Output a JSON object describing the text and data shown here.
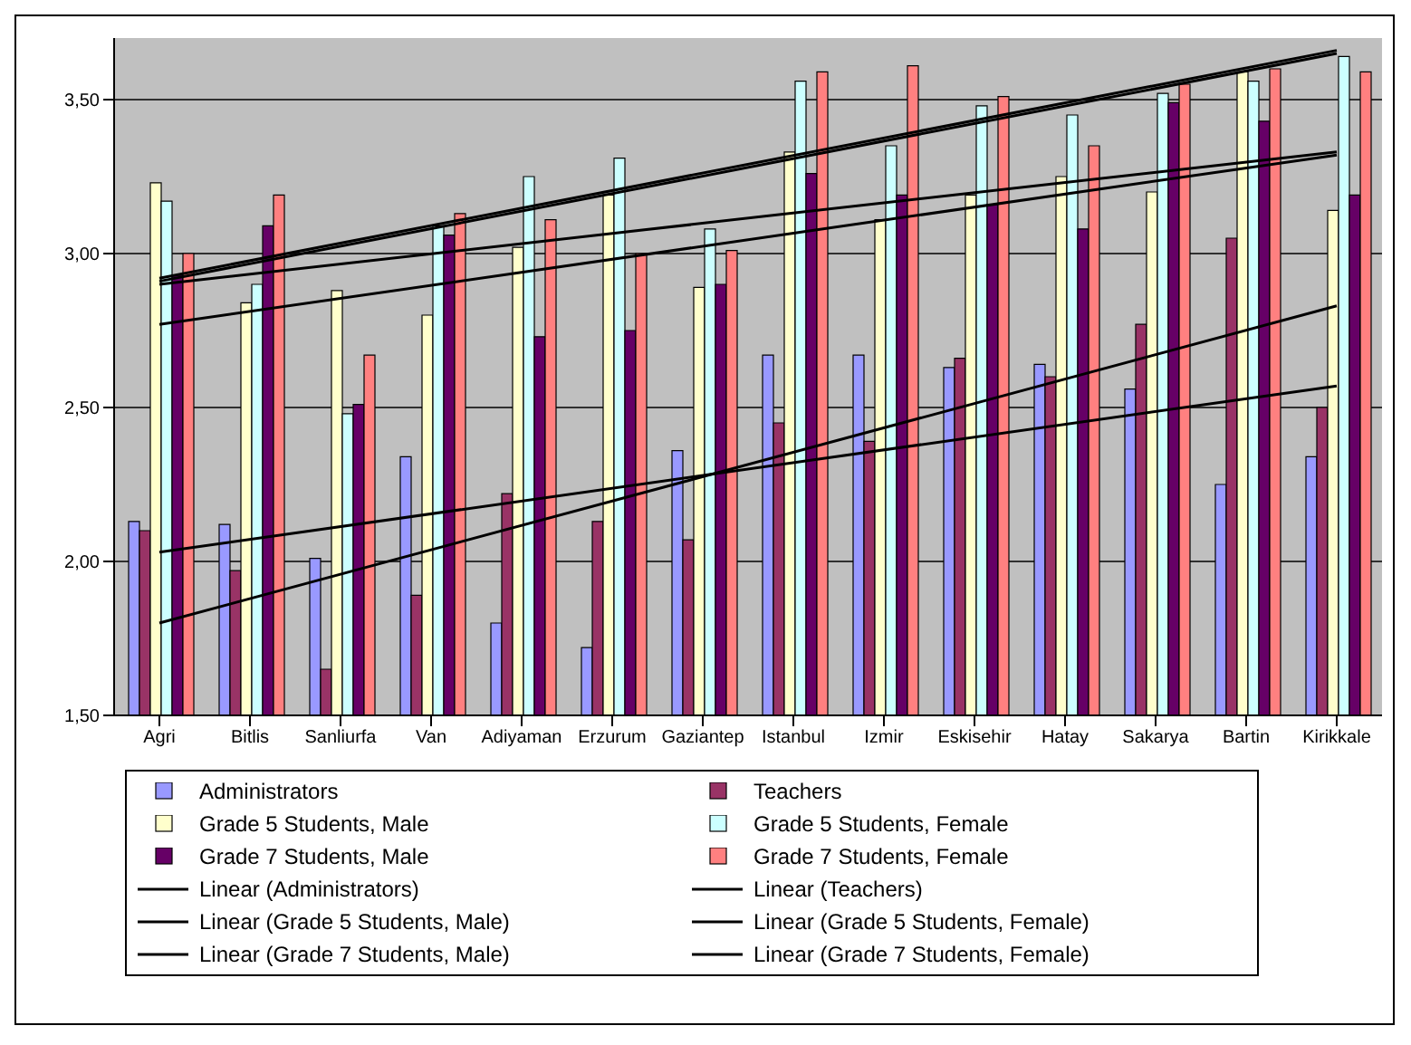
{
  "chart_data": {
    "type": "bar",
    "categories": [
      "Agri",
      "Bitlis",
      "Sanliurfa",
      "Van",
      "Adiyaman",
      "Erzurum",
      "Gaziantep",
      "Istanbul",
      "Izmir",
      "Eskisehir",
      "Hatay",
      "Sakarya",
      "Bartin",
      "Kirikkale"
    ],
    "series": [
      {
        "name": "Administrators",
        "color": "#9999ff",
        "values": [
          2.13,
          2.12,
          2.01,
          2.34,
          1.8,
          1.72,
          2.36,
          2.67,
          2.67,
          2.63,
          2.64,
          2.56,
          2.25,
          2.34
        ]
      },
      {
        "name": "Teachers",
        "color": "#993366",
        "values": [
          2.1,
          1.97,
          1.65,
          1.89,
          2.22,
          2.13,
          2.07,
          2.45,
          2.39,
          2.66,
          2.6,
          2.77,
          3.05,
          2.5
        ]
      },
      {
        "name": "Grade 5 Students, Male",
        "color": "#ffffcc",
        "values": [
          3.23,
          2.84,
          2.88,
          2.8,
          3.02,
          3.19,
          2.89,
          3.33,
          3.11,
          3.19,
          3.25,
          3.2,
          3.59,
          3.14
        ]
      },
      {
        "name": "Grade 5 Students, Female",
        "color": "#ccffff",
        "values": [
          3.17,
          2.9,
          2.48,
          3.09,
          3.25,
          3.31,
          3.08,
          3.56,
          3.35,
          3.48,
          3.45,
          3.52,
          3.56,
          3.64
        ]
      },
      {
        "name": "Grade 7 Students, Male",
        "color": "#660066",
        "values": [
          2.93,
          3.09,
          2.51,
          3.06,
          2.73,
          2.75,
          2.9,
          3.26,
          3.19,
          3.16,
          3.08,
          3.49,
          3.43,
          3.19
        ]
      },
      {
        "name": "Grade 7 Students, Female",
        "color": "#ff8080",
        "values": [
          3.0,
          3.19,
          2.67,
          3.13,
          3.11,
          3.0,
          3.01,
          3.59,
          3.61,
          3.51,
          3.35,
          3.55,
          3.6,
          3.59
        ]
      },
      {
        "name": "Linear (Administrators)",
        "type": "line",
        "color": "#000000",
        "x": [
          "Agri",
          "Kirikkale"
        ],
        "values": [
          2.03,
          2.57
        ]
      },
      {
        "name": "Linear (Teachers)",
        "type": "line",
        "color": "#000000",
        "x": [
          "Agri",
          "Kirikkale"
        ],
        "values": [
          1.8,
          2.83
        ]
      },
      {
        "name": "Linear (Grade 5 Students, Male)",
        "type": "line",
        "color": "#000000",
        "x": [
          "Agri",
          "Kirikkale"
        ],
        "values": [
          2.9,
          3.33
        ]
      },
      {
        "name": "Linear (Grade 5 Students, Female)",
        "type": "line",
        "color": "#000000",
        "x": [
          "Agri",
          "Kirikkale"
        ],
        "values": [
          2.92,
          3.66
        ]
      },
      {
        "name": "Linear (Grade 7 Students, Male)",
        "type": "line",
        "color": "#000000",
        "x": [
          "Agri",
          "Kirikkale"
        ],
        "values": [
          2.77,
          3.32
        ]
      },
      {
        "name": "Linear (Grade 7 Students, Female)",
        "type": "line",
        "color": "#000000",
        "x": [
          "Agri",
          "Kirikkale"
        ],
        "values": [
          2.91,
          3.65
        ]
      }
    ],
    "ylim": [
      1.5,
      3.7
    ],
    "yticks": [
      {
        "value": 1.5,
        "label": "1,50"
      },
      {
        "value": 2.0,
        "label": "2,00"
      },
      {
        "value": 2.5,
        "label": "2,50"
      },
      {
        "value": 3.0,
        "label": "3,00"
      },
      {
        "value": 3.5,
        "label": "3,50"
      }
    ],
    "grid": "y",
    "legend": "bottom",
    "marker": "none",
    "line_style": "solid"
  }
}
